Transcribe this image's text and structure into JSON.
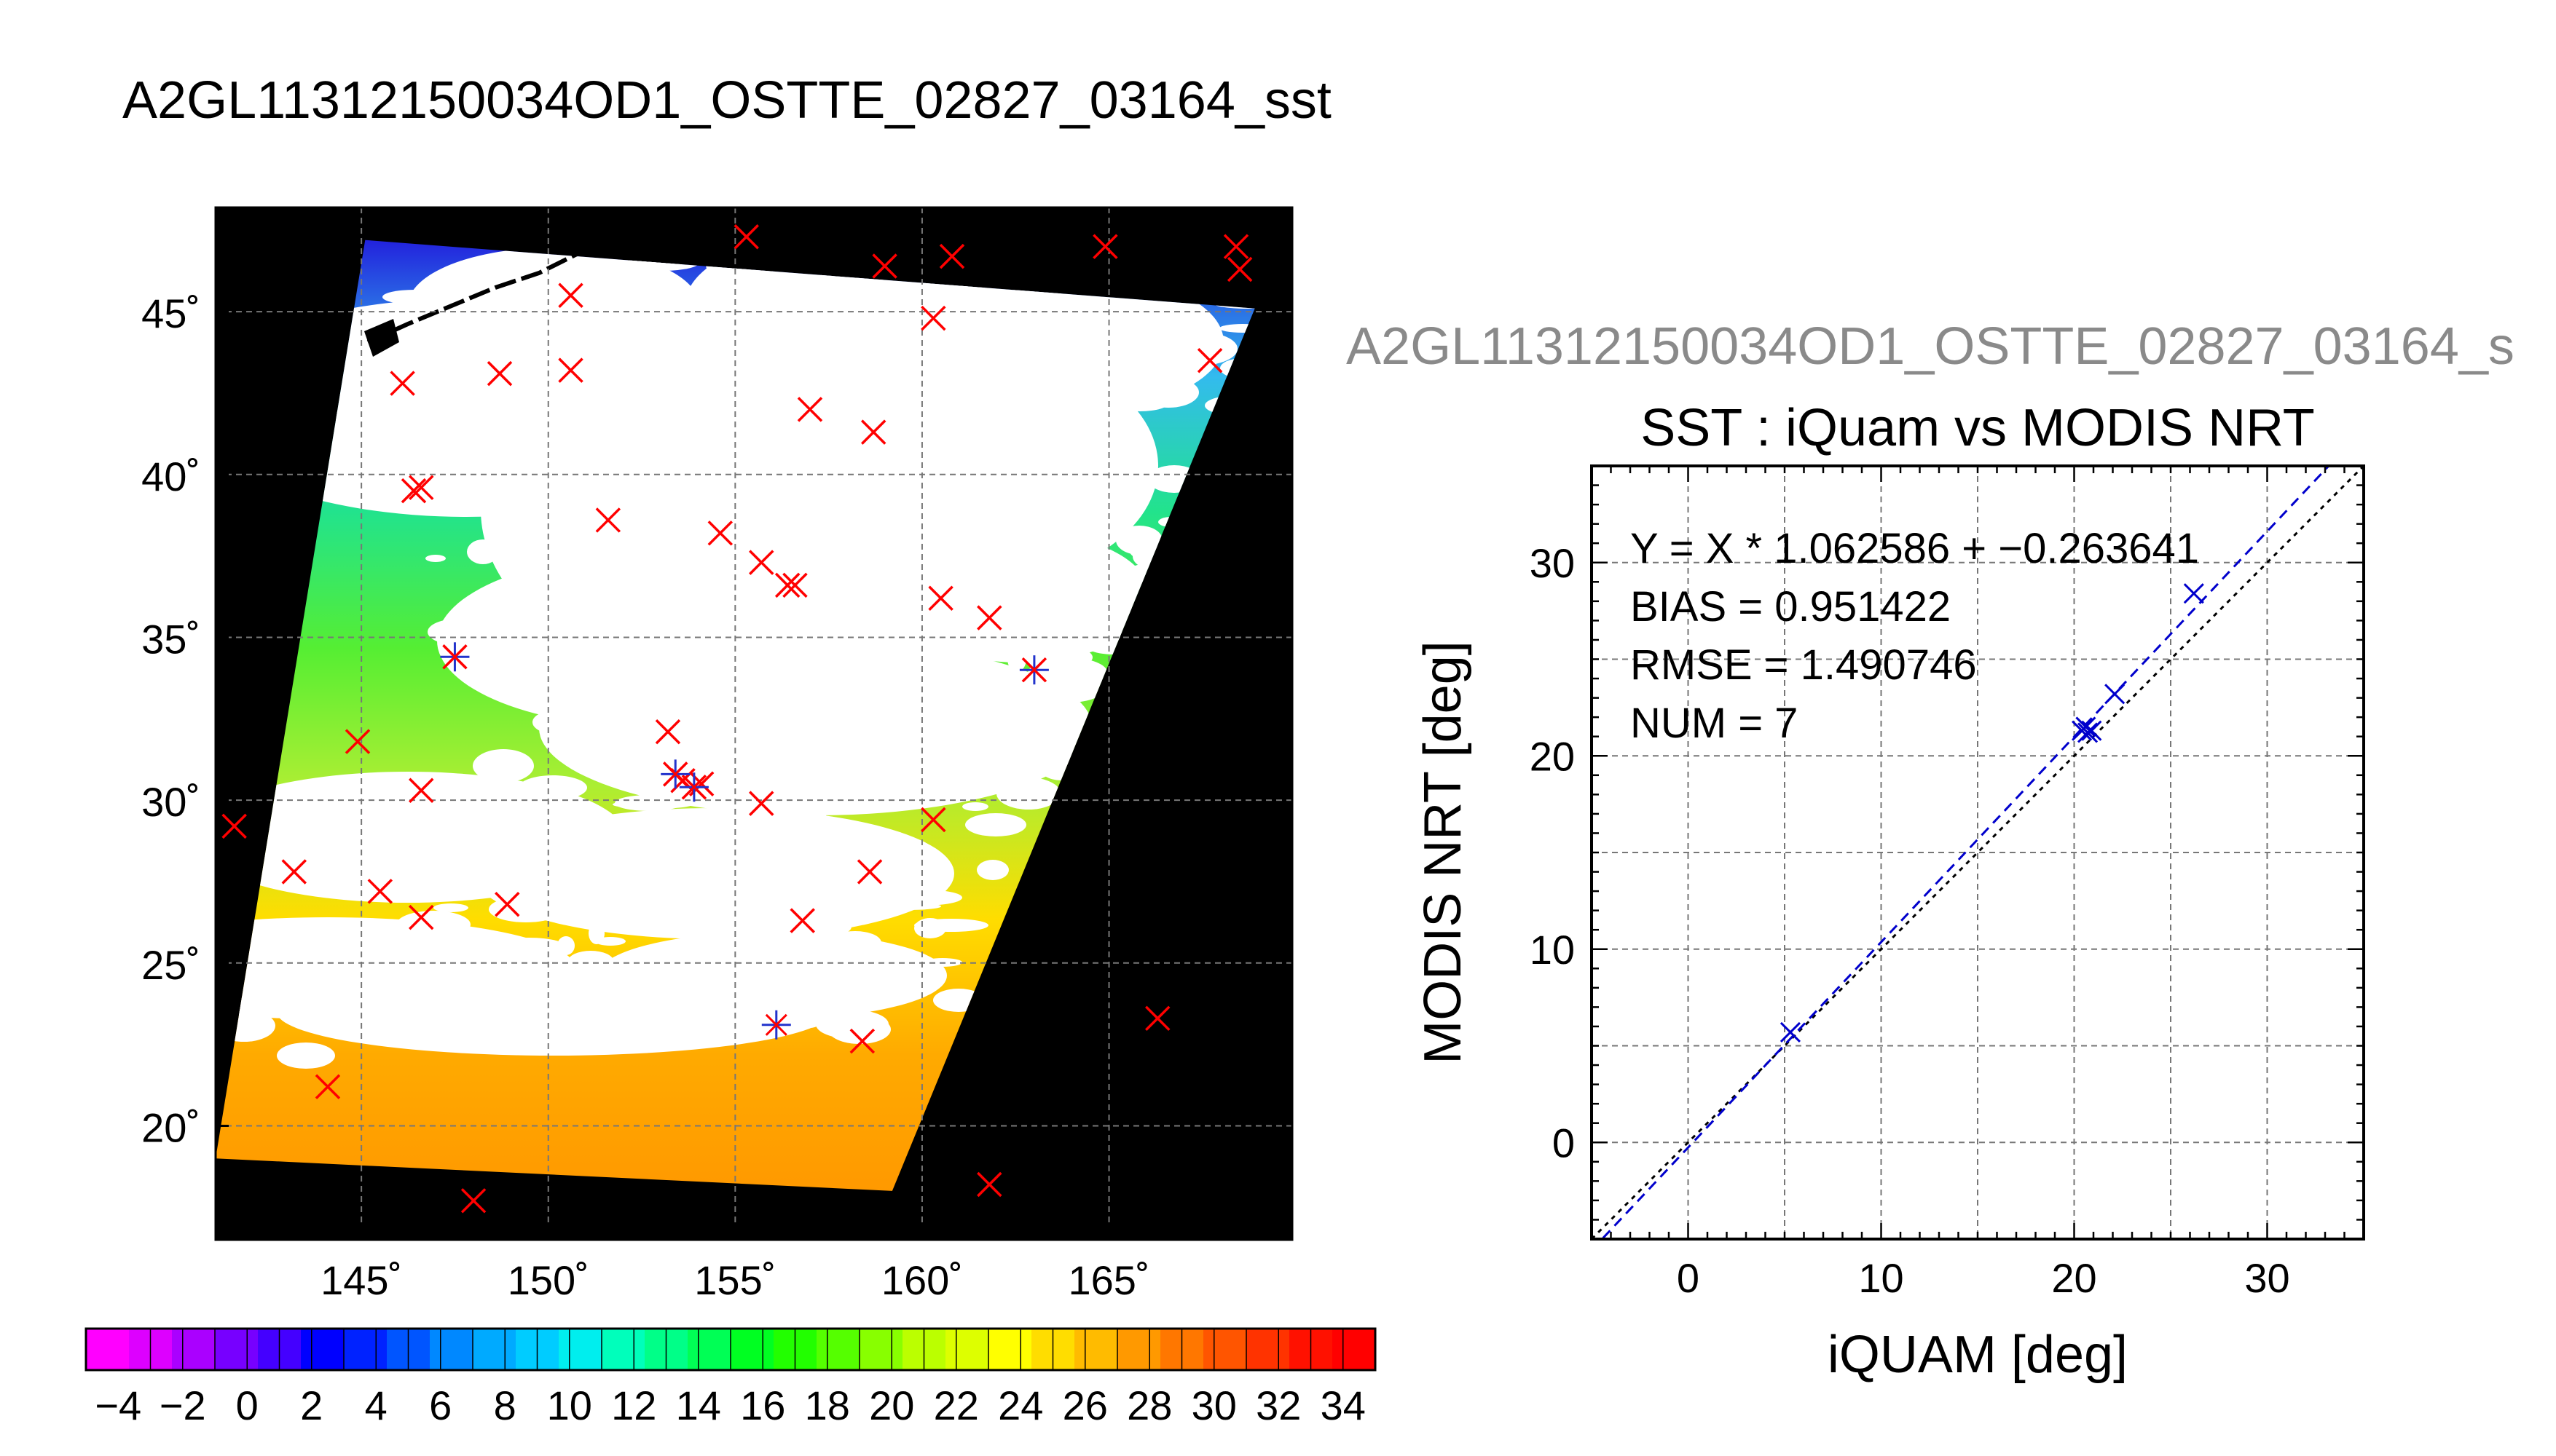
{
  "page_title": "A2GL11312150034OD1_OSTTE_02827_03164_sst",
  "scatter_subtitle": "A2GL11312150034OD1_OSTTE_02827_03164_s",
  "chart_data": [
    {
      "type": "map",
      "title": "A2GL11312150034OD1_OSTTE_02827_03164_sst",
      "x_ticks": [
        145,
        150,
        155,
        160,
        165
      ],
      "x_tick_labels": [
        "145˚",
        "150˚",
        "155˚",
        "160˚",
        "165˚"
      ],
      "y_ticks": [
        20,
        25,
        30,
        35,
        40,
        45
      ],
      "y_tick_labels": [
        "20˚",
        "25˚",
        "30˚",
        "35˚",
        "40˚",
        "45˚"
      ],
      "xlim": [
        141.1,
        169.9
      ],
      "ylim": [
        16.5,
        48.2
      ],
      "grid": true,
      "swath_corners": [
        [
          145.1,
          47.2
        ],
        [
          168.9,
          45.1
        ],
        [
          159.2,
          18.0
        ],
        [
          141.1,
          19.0
        ]
      ],
      "colors": {
        "background": "#000000",
        "cloud": "#ffffff",
        "gradient": [
          "#2222dd",
          "#33bbee",
          "#22e38c",
          "#55ee33",
          "#aaee33",
          "#ffdd00",
          "#ffaa00",
          "#ff9900"
        ]
      },
      "buoys_red": [
        [
          155.3,
          47.3
        ],
        [
          159.0,
          46.4
        ],
        [
          160.8,
          46.7
        ],
        [
          164.9,
          47.0
        ],
        [
          168.4,
          47.0
        ],
        [
          168.5,
          46.3
        ],
        [
          150.6,
          45.5
        ],
        [
          160.3,
          44.8
        ],
        [
          150.6,
          43.2
        ],
        [
          148.7,
          43.1
        ],
        [
          146.1,
          42.8
        ],
        [
          167.7,
          43.5
        ],
        [
          157.0,
          42.0
        ],
        [
          158.7,
          41.3
        ],
        [
          146.4,
          39.5
        ],
        [
          146.6,
          39.6
        ],
        [
          151.6,
          38.6
        ],
        [
          154.6,
          38.2
        ],
        [
          155.7,
          37.3
        ],
        [
          156.4,
          36.6
        ],
        [
          156.6,
          36.6
        ],
        [
          160.5,
          36.2
        ],
        [
          161.8,
          35.6
        ],
        [
          163.0,
          34.0
        ],
        [
          147.5,
          34.4
        ],
        [
          153.2,
          32.1
        ],
        [
          144.9,
          31.8
        ],
        [
          153.4,
          30.8
        ],
        [
          153.6,
          30.6
        ],
        [
          153.9,
          30.4
        ],
        [
          154.1,
          30.5
        ],
        [
          146.6,
          30.3
        ],
        [
          155.7,
          29.9
        ],
        [
          160.3,
          29.4
        ],
        [
          141.6,
          29.2
        ],
        [
          143.2,
          27.8
        ],
        [
          158.6,
          27.8
        ],
        [
          145.5,
          27.2
        ],
        [
          148.9,
          26.8
        ],
        [
          146.6,
          26.4
        ],
        [
          156.8,
          26.3
        ],
        [
          166.3,
          23.3
        ],
        [
          158.4,
          22.6
        ],
        [
          144.1,
          21.2
        ],
        [
          161.8,
          18.2
        ],
        [
          148.0,
          17.7
        ]
      ],
      "buoys_blue": [
        [
          147.5,
          34.4
        ],
        [
          163.0,
          34.0
        ],
        [
          156.1,
          23.1
        ],
        [
          153.4,
          30.8
        ],
        [
          153.9,
          30.4
        ]
      ],
      "colorbar": {
        "range": [
          -5,
          35
        ],
        "step": 2,
        "tick_labels": [
          "−4",
          "−2",
          "0",
          "2",
          "4",
          "6",
          "8",
          "10",
          "12",
          "14",
          "16",
          "18",
          "20",
          "22",
          "24",
          "26",
          "28",
          "30",
          "32",
          "34"
        ],
        "tick_values": [
          -4,
          -2,
          0,
          2,
          4,
          6,
          8,
          10,
          12,
          14,
          16,
          18,
          20,
          22,
          24,
          26,
          28,
          30,
          32,
          34
        ],
        "colors": [
          "#ff00ff",
          "#dd00ff",
          "#aa00ff",
          "#7700ff",
          "#4400ff",
          "#0000ff",
          "#0022ff",
          "#0055ff",
          "#0088ff",
          "#00aaff",
          "#00ccff",
          "#00eeee",
          "#00ffbb",
          "#00ff88",
          "#00ff55",
          "#00ff22",
          "#22ff00",
          "#55ff00",
          "#88ff00",
          "#bbff00",
          "#ddff00",
          "#ffff00",
          "#ffdd00",
          "#ffbb00",
          "#ff9900",
          "#ff7700",
          "#ff5500",
          "#ff3300",
          "#ff1100",
          "#ff0000"
        ]
      }
    },
    {
      "type": "scatter",
      "title": "SST : iQuam vs MODIS NRT",
      "xlabel": "iQUAM [deg]",
      "ylabel": "MODIS NRT [deg]",
      "xlim": [
        -5,
        35
      ],
      "ylim": [
        -5,
        35
      ],
      "x_ticks": [
        0,
        10,
        20,
        30
      ],
      "y_ticks": [
        0,
        10,
        20,
        30
      ],
      "grid": true,
      "annotations": [
        "Y = X * 1.062586 + −0.263641",
        "BIAS = 0.951422",
        "RMSE = 1.490746",
        "NUM = 7"
      ],
      "regression": {
        "slope": 1.062586,
        "intercept": -0.263641
      },
      "points": [
        [
          5.3,
          5.7
        ],
        [
          20.4,
          21.3
        ],
        [
          20.6,
          21.5
        ],
        [
          20.7,
          21.2
        ],
        [
          20.9,
          21.3
        ],
        [
          22.1,
          23.2
        ],
        [
          26.2,
          28.4
        ]
      ]
    }
  ]
}
